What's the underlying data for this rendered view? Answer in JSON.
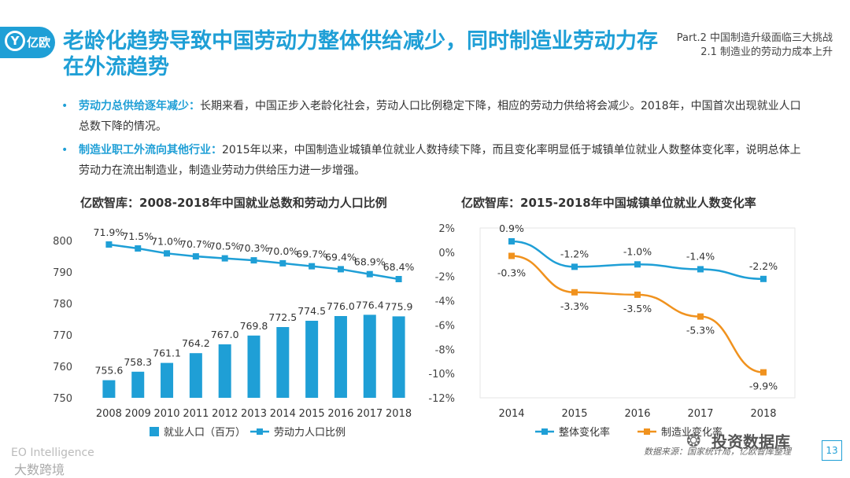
{
  "header": {
    "logo_text": "亿欧",
    "title": "老龄化趋势导致中国劳动力整体供给减少，同时制造业劳动力存在外流趋势",
    "part_line1": "Part.2  中国制造升级面临三大挑战",
    "part_line2": "2.1  制造业的劳动力成本上升"
  },
  "bullets": [
    {
      "lead": "劳动力总供给逐年减少：",
      "text": "长期来看，中国正步入老龄化社会，劳动人口比例稳定下降，相应的劳动力供给将会减少。2018年，中国首次出现就业人口总数下降的情况。"
    },
    {
      "lead": "制造业职工外流向其他行业：",
      "text": "2015年以来，中国制造业城镇单位就业人数持续下降，而且变化率明显低于城镇单位就业人数整体变化率，说明总体上劳动力在流出制造业，制造业劳动力供给压力进一步增强。"
    }
  ],
  "colors": {
    "accent": "#1f9fd6",
    "orange": "#f0921e",
    "grid": "#e6e6e6"
  },
  "chart_data": [
    {
      "type": "bar",
      "title": "亿欧智库：2008-2018年中国就业总数和劳动力人口比例",
      "categories": [
        "2008",
        "2009",
        "2010",
        "2011",
        "2012",
        "2013",
        "2014",
        "2015",
        "2016",
        "2017",
        "2018"
      ],
      "ylim": [
        750,
        800
      ],
      "yticks": [
        "750",
        "760",
        "770",
        "780",
        "790",
        "800"
      ],
      "series": [
        {
          "name": "就业人口（百万）",
          "kind": "bar",
          "values": [
            755.6,
            758.3,
            761.1,
            764.2,
            767.0,
            769.8,
            772.5,
            774.5,
            776.0,
            776.4,
            775.9
          ],
          "labels": [
            "755.6",
            "758.3",
            "761.1",
            "764.2",
            "767.0",
            "769.8",
            "772.5",
            "774.5",
            "776.0",
            "776.4",
            "775.9"
          ]
        },
        {
          "name": "劳动力人口比例",
          "kind": "line",
          "values": [
            71.9,
            71.5,
            71.0,
            70.7,
            70.5,
            70.3,
            70.0,
            69.7,
            69.4,
            68.9,
            68.4
          ],
          "labels": [
            "71.9%",
            "71.5%",
            "71.0%",
            "70.7%",
            "70.5%",
            "70.3%",
            "70.0%",
            "69.7%",
            "69.4%",
            "68.9%",
            "68.4%"
          ]
        }
      ]
    },
    {
      "type": "line",
      "title": "亿欧智库：2015-2018年中国城镇单位就业人数变化率",
      "categories": [
        "2014",
        "2015",
        "2016",
        "2017",
        "2018"
      ],
      "ylim": [
        -12,
        2
      ],
      "yticks": [
        "2%",
        "0%",
        "-2%",
        "-4%",
        "-6%",
        "-8%",
        "-10%",
        "-12%"
      ],
      "series": [
        {
          "name": "整体变化率",
          "values": [
            0.9,
            -1.2,
            -1.0,
            -1.4,
            -2.2
          ],
          "labels": [
            "0.9%",
            "-1.2%",
            "-1.0%",
            "-1.4%",
            "-2.2%"
          ]
        },
        {
          "name": "制造业变化率",
          "values": [
            -0.3,
            -3.3,
            -3.5,
            -5.3,
            -9.9
          ],
          "labels": [
            "-0.3%",
            "-3.3%",
            "-3.5%",
            "-5.3%",
            "-9.9%"
          ]
        }
      ]
    }
  ],
  "footer": {
    "brand1": "EO Intelligence",
    "brand2": "大数跨境",
    "source": "数据来源：国家统计局，亿欧智库整理",
    "watermark": "投资数据库",
    "page": "13"
  }
}
